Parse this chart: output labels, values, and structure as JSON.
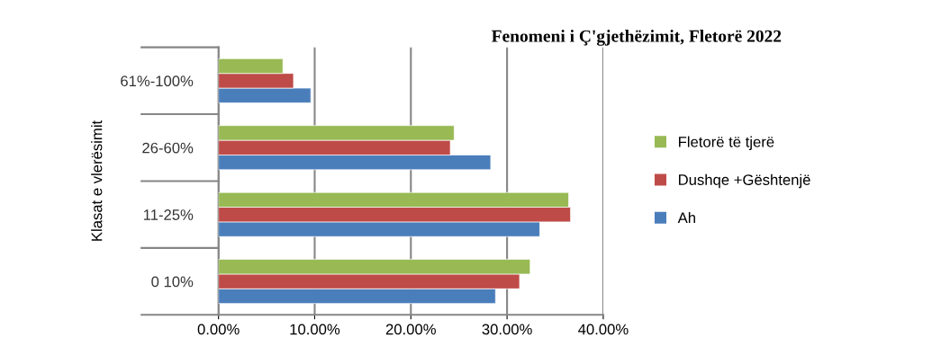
{
  "chart_data": {
    "type": "bar",
    "orientation": "horizontal",
    "title": "Fenomeni i Ç'gjethëzimit, Fletorë 2022",
    "ylabel": "Klasat e vlerësimit",
    "categories": [
      "61%-100%",
      "26-60%",
      "11-25%",
      "0 10%"
    ],
    "series": [
      {
        "name": "Ah",
        "color": "#4a7ebb",
        "values": [
          9.6,
          28.3,
          33.4,
          28.8
        ]
      },
      {
        "name": "Dushqe +Gështenjë",
        "color": "#be4b48",
        "values": [
          7.8,
          24.1,
          36.6,
          31.3
        ]
      },
      {
        "name": "Fletorë të tjerë",
        "color": "#98b954",
        "values": [
          6.7,
          24.5,
          36.4,
          32.4
        ]
      }
    ],
    "xlim": [
      0,
      40
    ],
    "xticks": [
      {
        "value": 0,
        "label": "0.00%"
      },
      {
        "value": 10,
        "label": "10.00%"
      },
      {
        "value": 20,
        "label": "20.00%"
      },
      {
        "value": 30,
        "label": "30.00%"
      },
      {
        "value": 40,
        "label": "40.00%"
      }
    ],
    "grid": "x",
    "legend": "right"
  }
}
